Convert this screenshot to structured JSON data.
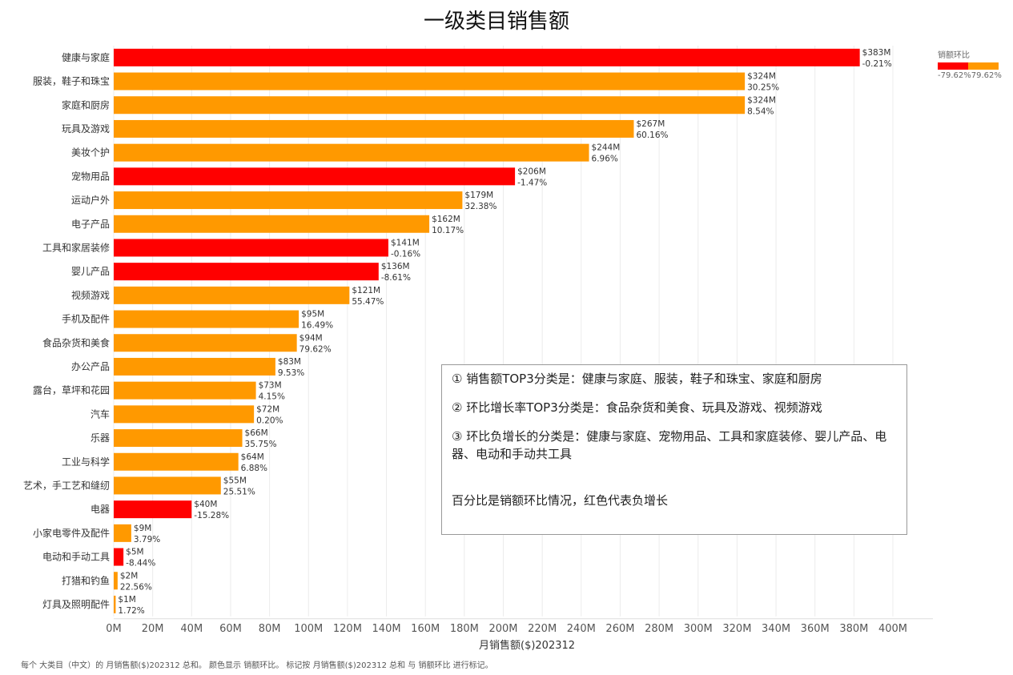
{
  "title": "一级类目销售额",
  "legend": {
    "title": "销额环比",
    "min": "-79.62%",
    "max": "79.62%",
    "neg_color": "#ff0000",
    "pos_color": "#ff9900"
  },
  "notes": [
    "① 销售额TOP3分类是：健康与家庭、服装，鞋子和珠宝、家庭和厨房",
    "② 环比增长率TOP3分类是：食品杂货和美食、玩具及游戏、视频游戏",
    "③ 环比负增长的分类是：健康与家庭、宠物用品、工具和家庭装修、婴儿产品、电器、电动和手动共工具",
    "百分比是销额环比情况，红色代表负增长"
  ],
  "footer": "每个 大类目（中文）的 月销售额($)202312 总和。 颜色显示 销额环比。 标记按 月销售额($)202312 总和 与 销额环比 进行标记。",
  "chart_data": {
    "type": "bar",
    "orientation": "horizontal",
    "title": "一级类目销售额",
    "xlabel": "月销售额($)202312",
    "ylabel": "",
    "xlim": [
      0,
      400
    ],
    "xticks": [
      "0M",
      "20M",
      "40M",
      "60M",
      "80M",
      "100M",
      "120M",
      "140M",
      "160M",
      "180M",
      "200M",
      "220M",
      "240M",
      "260M",
      "280M",
      "300M",
      "320M",
      "340M",
      "360M",
      "380M",
      "400M"
    ],
    "categories": [
      "健康与家庭",
      "服装，鞋子和珠宝",
      "家庭和厨房",
      "玩具及游戏",
      "美妆个护",
      "宠物用品",
      "运动户外",
      "电子产品",
      "工具和家居装修",
      "婴儿产品",
      "视频游戏",
      "手机及配件",
      "食品杂货和美食",
      "办公产品",
      "露台，草坪和花园",
      "汽车",
      "乐器",
      "工业与科学",
      "艺术，手工艺和缝纫",
      "电器",
      "小家电零件及配件",
      "电动和手动工具",
      "打猎和钓鱼",
      "灯具及照明配件"
    ],
    "values": [
      383,
      324,
      324,
      267,
      244,
      206,
      179,
      162,
      141,
      136,
      121,
      95,
      94,
      83,
      73,
      72,
      66,
      64,
      55,
      40,
      9,
      5,
      2,
      1
    ],
    "value_labels": [
      "$383M",
      "$324M",
      "$324M",
      "$267M",
      "$244M",
      "$206M",
      "$179M",
      "$162M",
      "$141M",
      "$136M",
      "$121M",
      "$95M",
      "$94M",
      "$83M",
      "$73M",
      "$72M",
      "$66M",
      "$64M",
      "$55M",
      "$40M",
      "$9M",
      "$5M",
      "$2M",
      "$1M"
    ],
    "mom_growth": [
      "-0.21%",
      "30.25%",
      "8.54%",
      "60.16%",
      "6.96%",
      "-1.47%",
      "32.38%",
      "10.17%",
      "-0.16%",
      "-8.61%",
      "55.47%",
      "16.49%",
      "79.62%",
      "9.53%",
      "4.15%",
      "0.20%",
      "35.75%",
      "6.88%",
      "25.51%",
      "-15.28%",
      "3.79%",
      "-8.44%",
      "22.56%",
      "1.72%"
    ],
    "grid": true
  }
}
